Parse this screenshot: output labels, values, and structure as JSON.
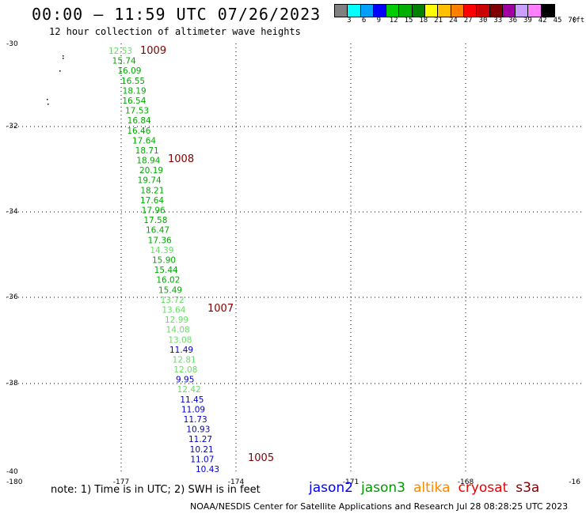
{
  "header": {
    "title": "00:00 – 11:59 UTC 07/26/2023",
    "subtitle": "12 hour collection of altimeter wave heights"
  },
  "legend": {
    "unit": "(ft)",
    "colors": [
      "#808080",
      "#00ffff",
      "#00a0ff",
      "#0000ff",
      "#00cc00",
      "#00b000",
      "#008000",
      "#ffff00",
      "#ffc000",
      "#ff8000",
      "#ff0000",
      "#cc0000",
      "#800000",
      "#a000a0",
      "#c8a0ff",
      "#ff80ff",
      "#000000"
    ],
    "labels": [
      "3",
      "6",
      "9",
      "12",
      "15",
      "18",
      "21",
      "24",
      "27",
      "30",
      "33",
      "36",
      "39",
      "42",
      "45",
      "70"
    ]
  },
  "map": {
    "lat_ticks": [
      "-30",
      "-32",
      "-34",
      "-36",
      "-38",
      "-40"
    ],
    "lon_ticks": [
      "-180",
      "-177",
      "-174",
      "-171",
      "-168",
      "-16"
    ],
    "pressure_labels": [
      "1009",
      "1008",
      "1007",
      "1005"
    ],
    "observations": [
      {
        "value": "12.53",
        "color": "#66dd66"
      },
      {
        "value": "15.74",
        "color": "#00aa00"
      },
      {
        "value": "16.09",
        "color": "#00aa00"
      },
      {
        "value": "16.55",
        "color": "#00aa00"
      },
      {
        "value": "18.19",
        "color": "#00aa00"
      },
      {
        "value": "16.54",
        "color": "#00aa00"
      },
      {
        "value": "17.53",
        "color": "#00aa00"
      },
      {
        "value": "16.84",
        "color": "#00aa00"
      },
      {
        "value": "16.46",
        "color": "#00aa00"
      },
      {
        "value": "17.64",
        "color": "#00aa00"
      },
      {
        "value": "18.71",
        "color": "#00aa00"
      },
      {
        "value": "18.94",
        "color": "#00aa00"
      },
      {
        "value": "20.19",
        "color": "#00aa00"
      },
      {
        "value": "19.74",
        "color": "#00aa00"
      },
      {
        "value": "18.21",
        "color": "#00aa00"
      },
      {
        "value": "17.64",
        "color": "#00aa00"
      },
      {
        "value": "17.96",
        "color": "#00aa00"
      },
      {
        "value": "17.58",
        "color": "#00aa00"
      },
      {
        "value": "16.47",
        "color": "#00aa00"
      },
      {
        "value": "17.36",
        "color": "#00aa00"
      },
      {
        "value": "14.39",
        "color": "#66dd66"
      },
      {
        "value": "15.90",
        "color": "#00aa00"
      },
      {
        "value": "15.44",
        "color": "#00aa00"
      },
      {
        "value": "16.02",
        "color": "#00aa00"
      },
      {
        "value": "15.49",
        "color": "#00aa00"
      },
      {
        "value": "13.72",
        "color": "#66dd66"
      },
      {
        "value": "13.64",
        "color": "#66dd66"
      },
      {
        "value": "12.99",
        "color": "#66dd66"
      },
      {
        "value": "14.08",
        "color": "#66dd66"
      },
      {
        "value": "13.08",
        "color": "#66dd66"
      },
      {
        "value": "11.49",
        "color": "#0000cc"
      },
      {
        "value": "12.81",
        "color": "#66dd66"
      },
      {
        "value": "12.08",
        "color": "#66dd66"
      },
      {
        "value": "9.95",
        "color": "#0000cc"
      },
      {
        "value": "12.42",
        "color": "#66dd66"
      },
      {
        "value": "11.45",
        "color": "#0000cc"
      },
      {
        "value": "11.09",
        "color": "#0000cc"
      },
      {
        "value": "11.73",
        "color": "#0000cc"
      },
      {
        "value": "10.93",
        "color": "#0000cc"
      },
      {
        "value": "11.27",
        "color": "#0000cc"
      },
      {
        "value": "10.21",
        "color": "#0000cc"
      },
      {
        "value": "11.07",
        "color": "#0000cc"
      },
      {
        "value": "10.43",
        "color": "#0000cc"
      }
    ]
  },
  "footer": {
    "note": "note: 1) Time is in UTC; 2) SWH is in feet",
    "credit": "NOAA/NESDIS Center for Satellite Applications and Research   Jul 28 08:28:25 UTC 2023",
    "satellites": [
      {
        "name": "jason2",
        "color": "#0000ff"
      },
      {
        "name": "jason3",
        "color": "#009900"
      },
      {
        "name": "altika",
        "color": "#ff8800"
      },
      {
        "name": "cryosat",
        "color": "#ee0000"
      },
      {
        "name": "s3a",
        "color": "#800000"
      }
    ]
  }
}
